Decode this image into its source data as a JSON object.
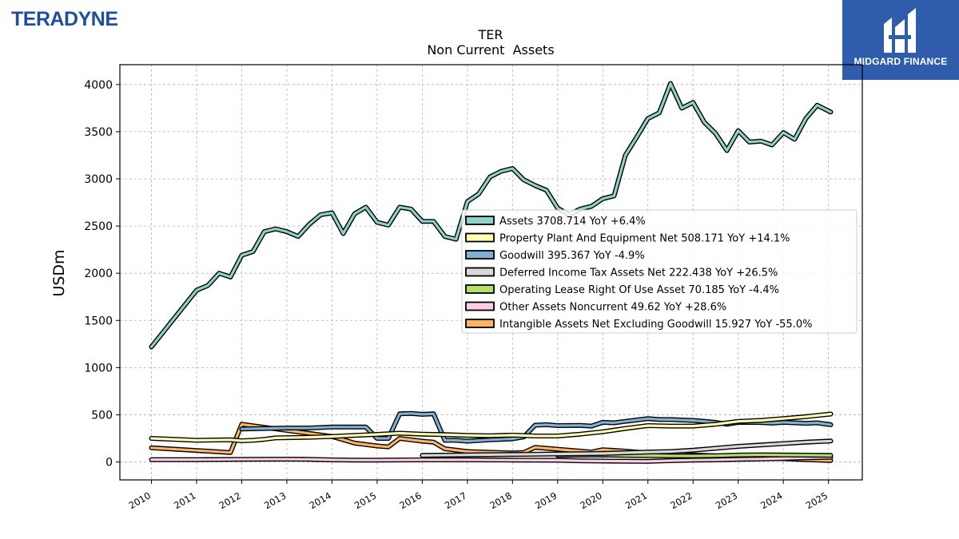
{
  "branding": {
    "left_logo_text": "TERADYNE",
    "right_logo_text": "MIDGARD FINANCE",
    "left_logo_color": "#1f4e9c",
    "right_logo_bg": "#2f5cab"
  },
  "chart_data": {
    "type": "line",
    "title": "TER",
    "subtitle": "Non Current  Assets",
    "xlabel": "",
    "ylabel": "USDm",
    "xlim": [
      2009.3,
      2025.75
    ],
    "ylim": [
      -190,
      4210
    ],
    "x_ticks": [
      "2010",
      "2011",
      "2012",
      "2013",
      "2014",
      "2015",
      "2016",
      "2017",
      "2018",
      "2019",
      "2020",
      "2021",
      "2022",
      "2023",
      "2024",
      "2025"
    ],
    "y_ticks": [
      "0",
      "500",
      "1000",
      "1500",
      "2000",
      "2500",
      "3000",
      "3500",
      "4000"
    ],
    "grid": true,
    "legend_position": "center-right",
    "series": [
      {
        "name": "Assets  3708.714 YoY +6.4%",
        "color": "#8dd3c7",
        "points": [
          [
            2010.0,
            1220
          ],
          [
            2011.0,
            1820
          ],
          [
            2011.25,
            1870
          ],
          [
            2011.5,
            2000
          ],
          [
            2011.75,
            1960
          ],
          [
            2012.0,
            2190
          ],
          [
            2012.25,
            2230
          ],
          [
            2012.5,
            2440
          ],
          [
            2012.75,
            2470
          ],
          [
            2013.0,
            2440
          ],
          [
            2013.25,
            2390
          ],
          [
            2013.5,
            2520
          ],
          [
            2013.75,
            2620
          ],
          [
            2014.0,
            2640
          ],
          [
            2014.25,
            2420
          ],
          [
            2014.5,
            2630
          ],
          [
            2014.75,
            2700
          ],
          [
            2015.0,
            2540
          ],
          [
            2015.25,
            2510
          ],
          [
            2015.5,
            2700
          ],
          [
            2015.75,
            2680
          ],
          [
            2016.0,
            2550
          ],
          [
            2016.25,
            2550
          ],
          [
            2016.5,
            2390
          ],
          [
            2016.75,
            2360
          ],
          [
            2017.0,
            2760
          ],
          [
            2017.25,
            2840
          ],
          [
            2017.5,
            3020
          ],
          [
            2017.75,
            3080
          ],
          [
            2018.0,
            3110
          ],
          [
            2018.25,
            2990
          ],
          [
            2018.5,
            2930
          ],
          [
            2018.75,
            2880
          ],
          [
            2019.0,
            2690
          ],
          [
            2019.25,
            2620
          ],
          [
            2019.5,
            2680
          ],
          [
            2019.75,
            2710
          ],
          [
            2020.0,
            2790
          ],
          [
            2020.25,
            2820
          ],
          [
            2020.5,
            3250
          ],
          [
            2020.75,
            3440
          ],
          [
            2021.0,
            3640
          ],
          [
            2021.25,
            3700
          ],
          [
            2021.5,
            4010
          ],
          [
            2021.75,
            3750
          ],
          [
            2022.0,
            3810
          ],
          [
            2022.25,
            3600
          ],
          [
            2022.5,
            3480
          ],
          [
            2022.75,
            3300
          ],
          [
            2023.0,
            3510
          ],
          [
            2023.25,
            3390
          ],
          [
            2023.5,
            3400
          ],
          [
            2023.75,
            3360
          ],
          [
            2024.0,
            3490
          ],
          [
            2024.25,
            3420
          ],
          [
            2024.5,
            3640
          ],
          [
            2024.75,
            3780
          ],
          [
            2025.05,
            3708
          ]
        ]
      },
      {
        "name": "Property Plant And Equipment Net  508.171 YoY +14.1%",
        "color": "#ffffb3",
        "points": [
          [
            2010.0,
            250
          ],
          [
            2011.0,
            230
          ],
          [
            2011.75,
            235
          ],
          [
            2012.0,
            225
          ],
          [
            2012.25,
            230
          ],
          [
            2012.5,
            240
          ],
          [
            2012.75,
            255
          ],
          [
            2013.0,
            258
          ],
          [
            2013.5,
            262
          ],
          [
            2014.0,
            270
          ],
          [
            2014.5,
            282
          ],
          [
            2015.0,
            292
          ],
          [
            2015.5,
            305
          ],
          [
            2016.0,
            295
          ],
          [
            2016.5,
            290
          ],
          [
            2017.0,
            282
          ],
          [
            2017.5,
            278
          ],
          [
            2018.0,
            285
          ],
          [
            2018.5,
            275
          ],
          [
            2019.0,
            275
          ],
          [
            2019.5,
            295
          ],
          [
            2020.0,
            320
          ],
          [
            2020.5,
            355
          ],
          [
            2021.0,
            385
          ],
          [
            2021.5,
            380
          ],
          [
            2022.0,
            380
          ],
          [
            2022.5,
            400
          ],
          [
            2023.0,
            430
          ],
          [
            2023.5,
            440
          ],
          [
            2024.0,
            460
          ],
          [
            2024.5,
            480
          ],
          [
            2025.05,
            508
          ]
        ]
      },
      {
        "name": "Goodwill  395.367 YoY -4.9%",
        "color": "#80b1d3",
        "points": [
          [
            2012.0,
            350
          ],
          [
            2012.5,
            355
          ],
          [
            2013.0,
            360
          ],
          [
            2013.5,
            360
          ],
          [
            2014.0,
            370
          ],
          [
            2014.5,
            370
          ],
          [
            2014.75,
            370
          ],
          [
            2015.0,
            250
          ],
          [
            2015.25,
            250
          ],
          [
            2015.5,
            510
          ],
          [
            2015.75,
            515
          ],
          [
            2016.0,
            505
          ],
          [
            2016.25,
            510
          ],
          [
            2016.5,
            230
          ],
          [
            2016.75,
            230
          ],
          [
            2017.0,
            220
          ],
          [
            2017.5,
            235
          ],
          [
            2018.0,
            245
          ],
          [
            2018.25,
            265
          ],
          [
            2018.5,
            390
          ],
          [
            2018.75,
            395
          ],
          [
            2019.0,
            385
          ],
          [
            2019.5,
            388
          ],
          [
            2019.75,
            380
          ],
          [
            2020.0,
            420
          ],
          [
            2020.25,
            415
          ],
          [
            2020.5,
            430
          ],
          [
            2020.75,
            445
          ],
          [
            2021.0,
            460
          ],
          [
            2021.25,
            450
          ],
          [
            2021.5,
            450
          ],
          [
            2021.75,
            445
          ],
          [
            2022.0,
            440
          ],
          [
            2022.5,
            420
          ],
          [
            2022.75,
            400
          ],
          [
            2023.0,
            420
          ],
          [
            2023.5,
            418
          ],
          [
            2023.75,
            412
          ],
          [
            2024.0,
            420
          ],
          [
            2024.5,
            410
          ],
          [
            2024.75,
            415
          ],
          [
            2025.05,
            395
          ]
        ]
      },
      {
        "name": "Deferred Income Tax Assets Net  222.438 YoY +26.5%",
        "color": "#d9d9d9",
        "points": [
          [
            2016.0,
            70
          ],
          [
            2017.0,
            75
          ],
          [
            2018.0,
            80
          ],
          [
            2019.0,
            85
          ],
          [
            2020.0,
            90
          ],
          [
            2021.0,
            105
          ],
          [
            2021.5,
            110
          ],
          [
            2022.0,
            125
          ],
          [
            2022.5,
            145
          ],
          [
            2023.0,
            165
          ],
          [
            2023.5,
            180
          ],
          [
            2024.0,
            195
          ],
          [
            2024.5,
            210
          ],
          [
            2025.05,
            222
          ]
        ]
      },
      {
        "name": "Operating Lease Right Of Use Asset  70.185 YoY -4.4%",
        "color": "#b3de69",
        "points": [
          [
            2019.0,
            70
          ],
          [
            2019.5,
            72
          ],
          [
            2020.0,
            75
          ],
          [
            2020.5,
            70
          ],
          [
            2021.0,
            68
          ],
          [
            2021.5,
            65
          ],
          [
            2022.0,
            64
          ],
          [
            2022.5,
            66
          ],
          [
            2023.0,
            73
          ],
          [
            2023.5,
            76
          ],
          [
            2024.0,
            74
          ],
          [
            2024.5,
            72
          ],
          [
            2025.05,
            70
          ]
        ]
      },
      {
        "name": "Other Assets Noncurrent  49.62 YoY +28.6%",
        "color": "#fccde5",
        "points": [
          [
            2010.0,
            25
          ],
          [
            2011.0,
            25
          ],
          [
            2012.0,
            28
          ],
          [
            2013.0,
            30
          ],
          [
            2013.5,
            28
          ],
          [
            2014.0,
            22
          ],
          [
            2014.5,
            20
          ],
          [
            2015.0,
            20
          ],
          [
            2016.0,
            22
          ],
          [
            2017.0,
            22
          ],
          [
            2018.0,
            20
          ],
          [
            2019.0,
            18
          ],
          [
            2019.5,
            12
          ],
          [
            2020.0,
            10
          ],
          [
            2020.5,
            8
          ],
          [
            2021.0,
            6
          ],
          [
            2021.5,
            14
          ],
          [
            2022.0,
            20
          ],
          [
            2022.5,
            22
          ],
          [
            2023.0,
            28
          ],
          [
            2023.5,
            32
          ],
          [
            2024.0,
            38
          ],
          [
            2024.5,
            44
          ],
          [
            2025.05,
            50
          ]
        ]
      },
      {
        "name": "Intangible Assets Net Excluding Goodwill  15.927 YoY -55.0%",
        "color": "#fdb462",
        "points": [
          [
            2010.0,
            150
          ],
          [
            2011.75,
            100
          ],
          [
            2012.0,
            400
          ],
          [
            2014.0,
            270
          ],
          [
            2014.5,
            200
          ],
          [
            2015.0,
            170
          ],
          [
            2015.25,
            160
          ],
          [
            2015.5,
            250
          ],
          [
            2016.0,
            220
          ],
          [
            2016.25,
            210
          ],
          [
            2016.5,
            140
          ],
          [
            2017.0,
            110
          ],
          [
            2018.0,
            95
          ],
          [
            2018.25,
            100
          ],
          [
            2018.5,
            155
          ],
          [
            2019.0,
            135
          ],
          [
            2019.75,
            105
          ],
          [
            2020.0,
            130
          ],
          [
            2020.5,
            115
          ],
          [
            2021.0,
            95
          ],
          [
            2022.0,
            75
          ],
          [
            2022.5,
            65
          ],
          [
            2023.0,
            55
          ],
          [
            2024.0,
            35
          ],
          [
            2024.5,
            25
          ],
          [
            2025.05,
            16
          ]
        ]
      }
    ]
  }
}
